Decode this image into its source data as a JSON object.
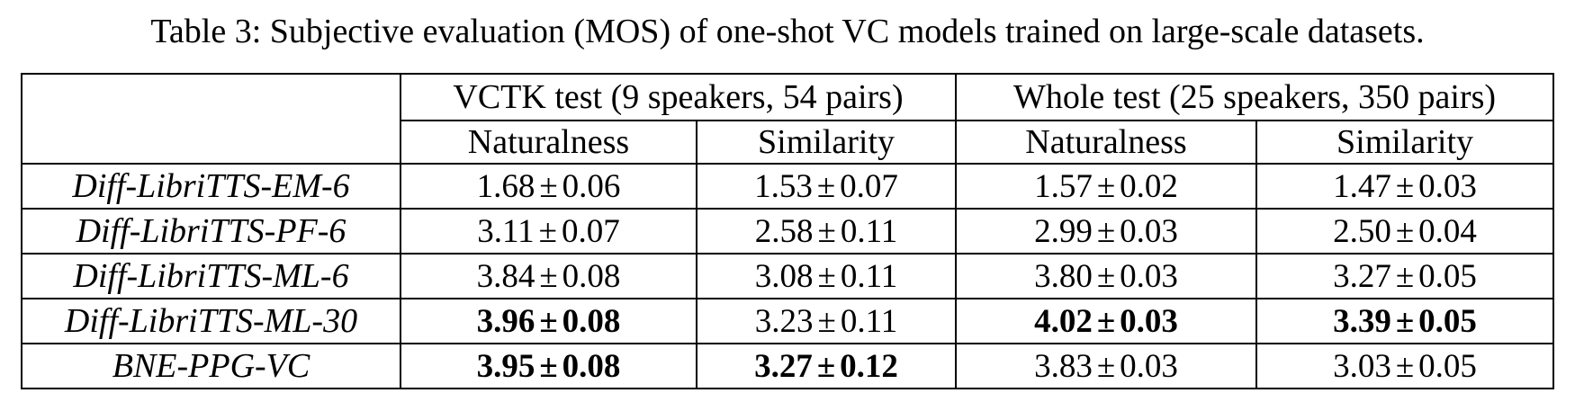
{
  "caption": "Table 3: Subjective evaluation (MOS) of one-shot VC models trained on large-scale datasets.",
  "groups": [
    {
      "label": "VCTK test (9 speakers, 54 pairs)"
    },
    {
      "label": "Whole test (25 speakers, 350 pairs)"
    }
  ],
  "subheaders": [
    "Naturalness",
    "Similarity",
    "Naturalness",
    "Similarity"
  ],
  "pm_symbol": "±",
  "rows": [
    {
      "model": "Diff-LibriTTS-EM-6",
      "cells": [
        {
          "mean": "1.68",
          "std": "0.06",
          "bold": false
        },
        {
          "mean": "1.53",
          "std": "0.07",
          "bold": false
        },
        {
          "mean": "1.57",
          "std": "0.02",
          "bold": false
        },
        {
          "mean": "1.47",
          "std": "0.03",
          "bold": false
        }
      ]
    },
    {
      "model": "Diff-LibriTTS-PF-6",
      "cells": [
        {
          "mean": "3.11",
          "std": "0.07",
          "bold": false
        },
        {
          "mean": "2.58",
          "std": "0.11",
          "bold": false
        },
        {
          "mean": "2.99",
          "std": "0.03",
          "bold": false
        },
        {
          "mean": "2.50",
          "std": "0.04",
          "bold": false
        }
      ]
    },
    {
      "model": "Diff-LibriTTS-ML-6",
      "cells": [
        {
          "mean": "3.84",
          "std": "0.08",
          "bold": false
        },
        {
          "mean": "3.08",
          "std": "0.11",
          "bold": false
        },
        {
          "mean": "3.80",
          "std": "0.03",
          "bold": false
        },
        {
          "mean": "3.27",
          "std": "0.05",
          "bold": false
        }
      ]
    },
    {
      "model": "Diff-LibriTTS-ML-30",
      "cells": [
        {
          "mean": "3.96",
          "std": "0.08",
          "bold": true
        },
        {
          "mean": "3.23",
          "std": "0.11",
          "bold": false
        },
        {
          "mean": "4.02",
          "std": "0.03",
          "bold": true
        },
        {
          "mean": "3.39",
          "std": "0.05",
          "bold": true
        }
      ]
    },
    {
      "model": "BNE-PPG-VC",
      "cells": [
        {
          "mean": "3.95",
          "std": "0.08",
          "bold": true
        },
        {
          "mean": "3.27",
          "std": "0.12",
          "bold": true
        },
        {
          "mean": "3.83",
          "std": "0.03",
          "bold": false
        },
        {
          "mean": "3.03",
          "std": "0.05",
          "bold": false
        }
      ]
    }
  ]
}
